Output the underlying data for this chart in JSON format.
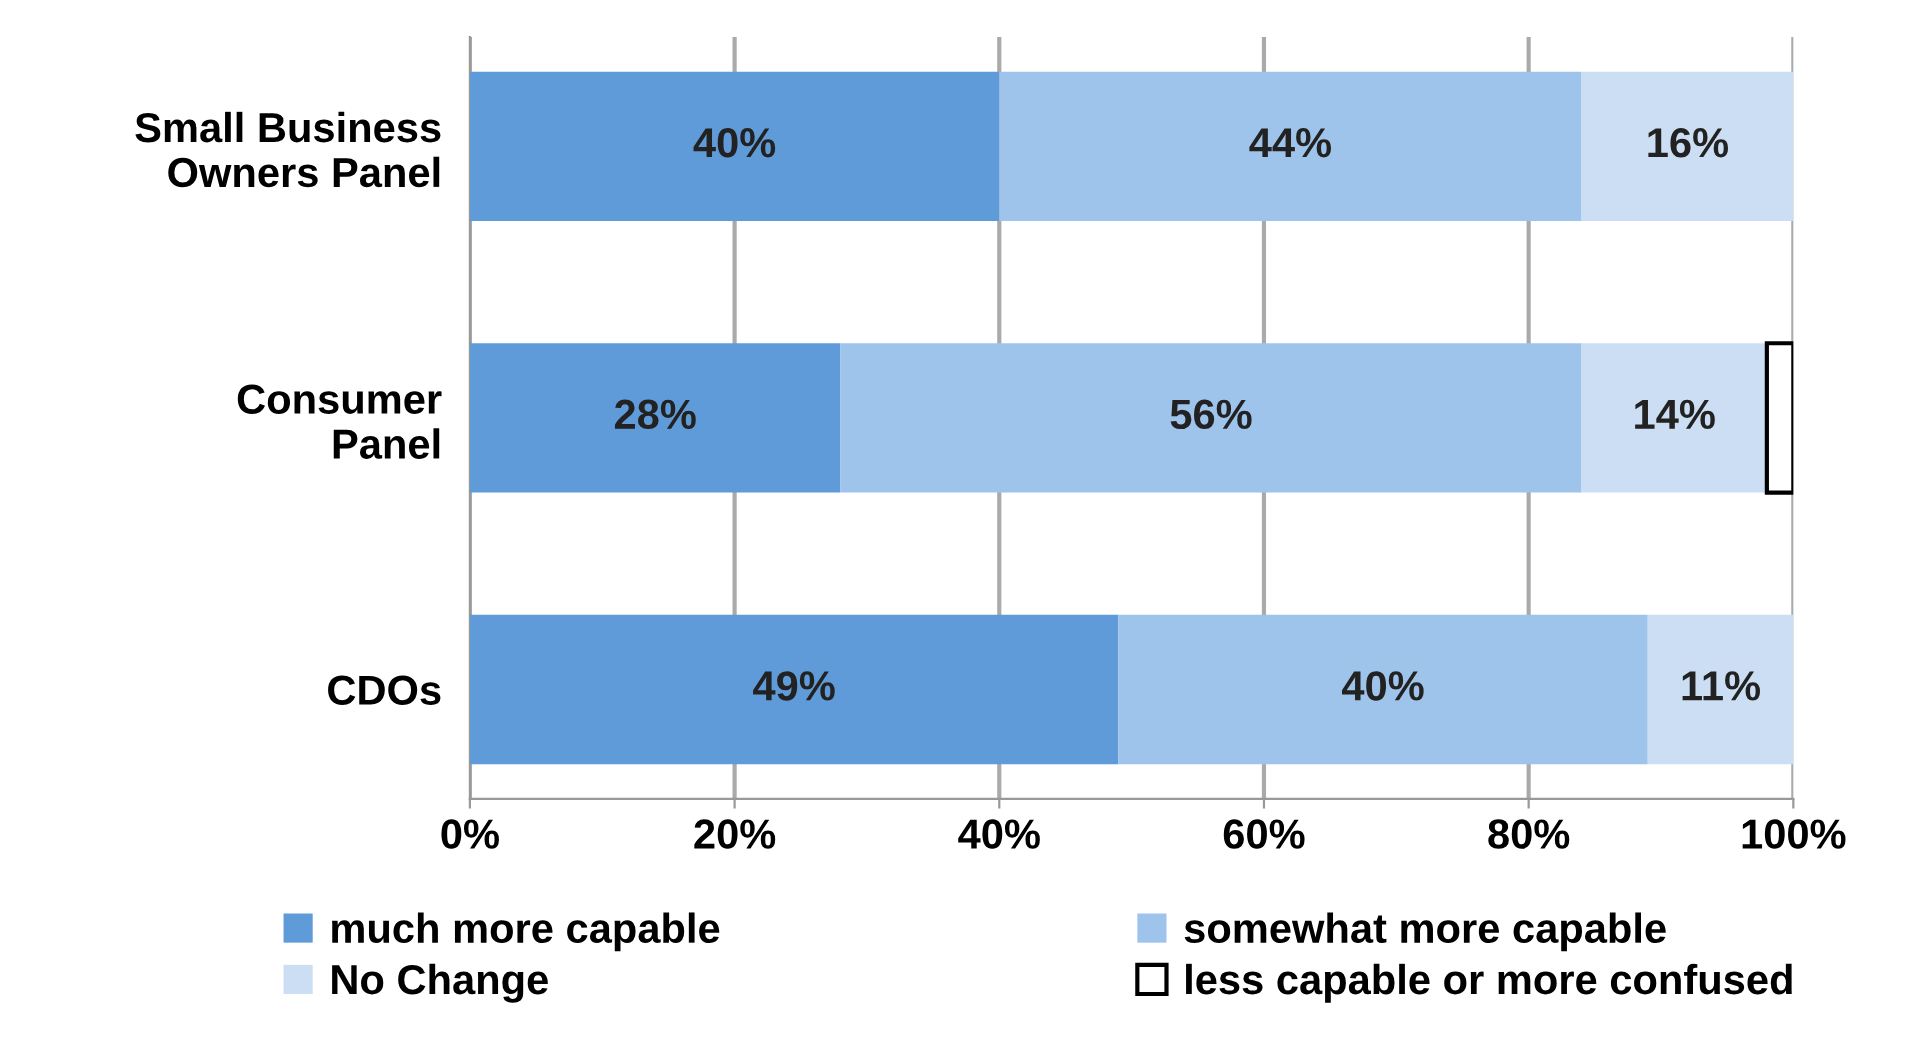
{
  "chart_data": {
    "type": "bar",
    "orientation": "horizontal",
    "stacked": true,
    "categories": [
      "Small Business\nOwners Panel",
      "Consumer\nPanel",
      "CDOs"
    ],
    "series": [
      {
        "name": "much more capable",
        "color": "#5f9bd8",
        "values": [
          40,
          28,
          49
        ],
        "value_labels": [
          "40%",
          "28%",
          "49%"
        ]
      },
      {
        "name": "somewhat more capable",
        "color": "#9fc4eb",
        "values": [
          44,
          56,
          40
        ],
        "value_labels": [
          "44%",
          "56%",
          "40%"
        ]
      },
      {
        "name": "No Change",
        "color": "#cbdef3",
        "values": [
          16,
          14,
          11
        ],
        "value_labels": [
          "16%",
          "14%",
          "11%"
        ]
      },
      {
        "name": "less capable or more confused",
        "color": "#ffffff",
        "values": [
          null,
          2,
          null
        ],
        "value_labels": [
          null,
          null,
          null
        ]
      }
    ],
    "xlim": [
      0,
      100
    ],
    "xticks": [
      {
        "value": 0,
        "label": "0%"
      },
      {
        "value": 20,
        "label": "20%"
      },
      {
        "value": 40,
        "label": "40%"
      },
      {
        "value": 60,
        "label": "60%"
      },
      {
        "value": 80,
        "label": "80%"
      },
      {
        "value": 100,
        "label": "100%"
      }
    ],
    "grid": "x",
    "legend": "bottom"
  }
}
